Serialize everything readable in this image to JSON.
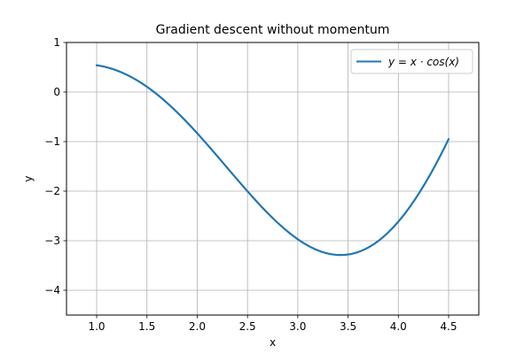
{
  "chart_data": {
    "type": "line",
    "title": "Gradient descent without momentum",
    "xlabel": "x",
    "ylabel": "y",
    "xlim": [
      0.7,
      4.8
    ],
    "ylim": [
      -4.5,
      1.0
    ],
    "xticks": [
      1.0,
      1.5,
      2.0,
      2.5,
      3.0,
      3.5,
      4.0,
      4.5
    ],
    "xtick_labels": [
      "1.0",
      "1.5",
      "2.0",
      "2.5",
      "3.0",
      "3.5",
      "4.0",
      "4.5"
    ],
    "yticks": [
      1,
      0,
      -1,
      -2,
      -3,
      -4
    ],
    "ytick_labels": [
      "1",
      "0",
      "−1",
      "−2",
      "−3",
      "−4"
    ],
    "grid": true,
    "legend_position": "top-right",
    "series": [
      {
        "name": "y = x · cos(x)",
        "color": "#1f77b4",
        "function": "x*cos(x)",
        "x_range": [
          1.0,
          4.5
        ],
        "x": [
          1.0,
          1.25,
          1.5,
          1.75,
          2.0,
          2.25,
          2.5,
          2.75,
          3.0,
          3.25,
          3.5,
          3.75,
          4.0,
          4.25,
          4.5
        ],
        "values": [
          0.54,
          0.394,
          0.106,
          -0.311,
          -0.832,
          -1.416,
          -2.003,
          -2.523,
          -2.97,
          -3.23,
          -3.278,
          -3.077,
          -2.615,
          -1.899,
          -0.948
        ]
      }
    ]
  }
}
